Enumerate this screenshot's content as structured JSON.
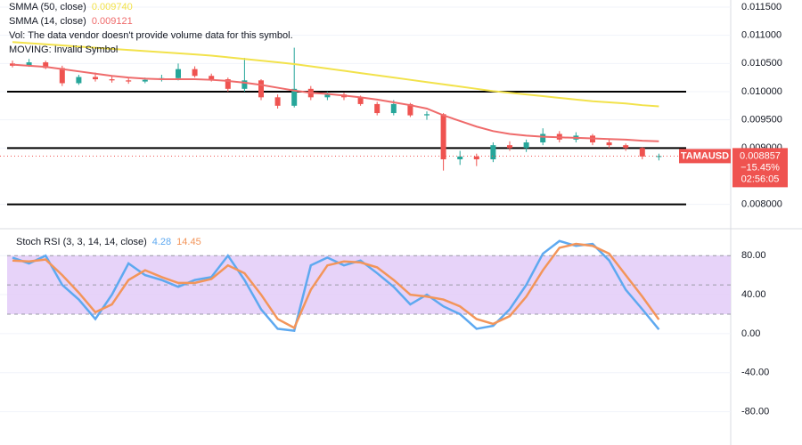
{
  "chart_data": [
    {
      "type": "candlestick",
      "annotations": [
        "Vol: The data vendor doesn't provide volume data for this symbol.",
        "MOVING: Invalid Symbol"
      ],
      "up_color": "#26a69a",
      "down_color": "#ef5350",
      "ohlc": [
        [
          0.0105,
          0.01055,
          0.01043,
          0.01046
        ],
        [
          0.01046,
          0.01058,
          0.01044,
          0.01052
        ],
        [
          0.01052,
          0.01055,
          0.0104,
          0.01042
        ],
        [
          0.01042,
          0.01046,
          0.0101,
          0.01015
        ],
        [
          0.01015,
          0.0103,
          0.01012,
          0.01026
        ],
        [
          0.01026,
          0.01034,
          0.01018,
          0.01022
        ],
        [
          0.01022,
          0.01027,
          0.01016,
          0.0102
        ],
        [
          0.0102,
          0.01024,
          0.01014,
          0.01018
        ],
        [
          0.01018,
          0.01025,
          0.01015,
          0.01021
        ],
        [
          0.01021,
          0.0103,
          0.01018,
          0.01024
        ],
        [
          0.01024,
          0.0105,
          0.0102,
          0.0104
        ],
        [
          0.0104,
          0.01045,
          0.01025,
          0.01028
        ],
        [
          0.01028,
          0.01032,
          0.01018,
          0.01022
        ],
        [
          0.01022,
          0.01025,
          0.01,
          0.01005
        ],
        [
          0.01005,
          0.0106,
          0.01,
          0.0102
        ],
        [
          0.0102,
          0.01022,
          0.00985,
          0.0099
        ],
        [
          0.0099,
          0.00995,
          0.0097,
          0.00975
        ],
        [
          0.00975,
          0.01078,
          0.00972,
          0.01005
        ],
        [
          0.01005,
          0.0101,
          0.00985,
          0.0099
        ],
        [
          0.0099,
          0.01,
          0.00985,
          0.00995
        ],
        [
          0.00995,
          0.00998,
          0.00985,
          0.0099
        ],
        [
          0.0099,
          0.00993,
          0.00975,
          0.00978
        ],
        [
          0.00978,
          0.00982,
          0.00958,
          0.00962
        ],
        [
          0.00962,
          0.00985,
          0.00958,
          0.00978
        ],
        [
          0.00978,
          0.0098,
          0.00955,
          0.00958
        ],
        [
          0.00958,
          0.00965,
          0.0095,
          0.0096
        ],
        [
          0.0096,
          0.00962,
          0.0086,
          0.0088
        ],
        [
          0.0088,
          0.00895,
          0.0087,
          0.00885
        ],
        [
          0.00885,
          0.0089,
          0.00868,
          0.0088
        ],
        [
          0.0088,
          0.0091,
          0.00875,
          0.00905
        ],
        [
          0.00905,
          0.00912,
          0.00895,
          0.009
        ],
        [
          0.009,
          0.00915,
          0.00893,
          0.0091
        ],
        [
          0.0091,
          0.00935,
          0.00905,
          0.00925
        ],
        [
          0.00925,
          0.0093,
          0.0091,
          0.00915
        ],
        [
          0.00915,
          0.00928,
          0.0091,
          0.00922
        ],
        [
          0.00922,
          0.00925,
          0.00905,
          0.0091
        ],
        [
          0.0091,
          0.00915,
          0.009,
          0.00905
        ],
        [
          0.00905,
          0.00908,
          0.00895,
          0.009
        ],
        [
          0.009,
          0.00902,
          0.0088,
          0.00885
        ],
        [
          0.00885,
          0.0089,
          0.00878,
          0.008857
        ]
      ],
      "series": [
        {
          "name": "SMMA (50, close)",
          "color": "#f2e24b",
          "value_label": "0.009740",
          "values": [
            0.01088,
            0.01086,
            0.01084,
            0.01082,
            0.0108,
            0.01078,
            0.01076,
            0.01074,
            0.01072,
            0.0107,
            0.01068,
            0.01066,
            0.01064,
            0.01061,
            0.01058,
            0.01055,
            0.01052,
            0.01049,
            0.01045,
            0.01041,
            0.01037,
            0.01033,
            0.01029,
            0.01025,
            0.01021,
            0.01017,
            0.01013,
            0.01009,
            0.01005,
            0.01001,
            0.00998,
            0.00995,
            0.00992,
            0.00989,
            0.00986,
            0.00983,
            0.00981,
            0.00979,
            0.00976,
            0.00974
          ]
        },
        {
          "name": "SMMA (14, close)",
          "color": "#ef6b6b",
          "value_label": "0.009121",
          "values": [
            0.01048,
            0.01046,
            0.01044,
            0.0104,
            0.01036,
            0.01032,
            0.01028,
            0.01025,
            0.01023,
            0.01022,
            0.01022,
            0.01022,
            0.01021,
            0.01019,
            0.01016,
            0.01012,
            0.01007,
            0.01002,
            0.00998,
            0.00996,
            0.00993,
            0.0099,
            0.00986,
            0.00981,
            0.00976,
            0.0097,
            0.00958,
            0.00948,
            0.00938,
            0.0093,
            0.00925,
            0.00922,
            0.0092,
            0.00919,
            0.00918,
            0.00917,
            0.00916,
            0.00915,
            0.00913,
            0.00912
          ]
        }
      ],
      "levels": [
        0.01,
        0.009,
        0.008
      ],
      "price_tag": {
        "symbol": "TAMAUSD",
        "value": 0.008857,
        "label": "0.008857",
        "change": "−15.45%",
        "countdown": "02:56:05"
      },
      "ylim": [
        0.0076,
        0.011626
      ],
      "yticks": [
        {
          "value": 0.0115,
          "label": "0.011500"
        },
        {
          "value": 0.011,
          "label": "0.011000"
        },
        {
          "value": 0.0105,
          "label": "0.010500"
        },
        {
          "value": 0.01,
          "label": "0.010000"
        },
        {
          "value": 0.0095,
          "label": "0.009500"
        },
        {
          "value": 0.009,
          "label": "0.009000"
        },
        {
          "value": 0.008,
          "label": "0.008000"
        }
      ],
      "grid": true
    },
    {
      "type": "line",
      "title": "Stoch RSI (3, 3, 14, 14, close)",
      "band": [
        20,
        80
      ],
      "midline": 50,
      "band_color": "#e1c8f7",
      "series": [
        {
          "name": "K",
          "color": "#5ea9f0",
          "values": [
            78,
            72,
            80,
            50,
            35,
            15,
            40,
            72,
            60,
            55,
            48,
            55,
            58,
            80,
            55,
            25,
            5,
            3,
            70,
            78,
            70,
            75,
            62,
            48,
            30,
            40,
            28,
            20,
            5,
            8,
            25,
            50,
            82,
            95,
            90,
            92,
            75,
            45,
            25,
            4.28
          ]
        },
        {
          "name": "D",
          "color": "#f3955a",
          "values": [
            75,
            74,
            76,
            60,
            42,
            22,
            30,
            55,
            65,
            58,
            52,
            52,
            56,
            70,
            62,
            40,
            15,
            6,
            45,
            70,
            74,
            73,
            68,
            55,
            40,
            38,
            35,
            28,
            15,
            10,
            18,
            38,
            65,
            88,
            92,
            90,
            82,
            60,
            38,
            14.45
          ]
        }
      ],
      "ylim": [
        -105,
        103
      ],
      "yticks": [
        {
          "value": 80,
          "label": "80.00"
        },
        {
          "value": 40,
          "label": "40.00"
        },
        {
          "value": 0,
          "label": "0.00"
        },
        {
          "value": -40,
          "label": "-40.00"
        },
        {
          "value": -80,
          "label": "-80.00"
        }
      ],
      "grid": true
    }
  ]
}
